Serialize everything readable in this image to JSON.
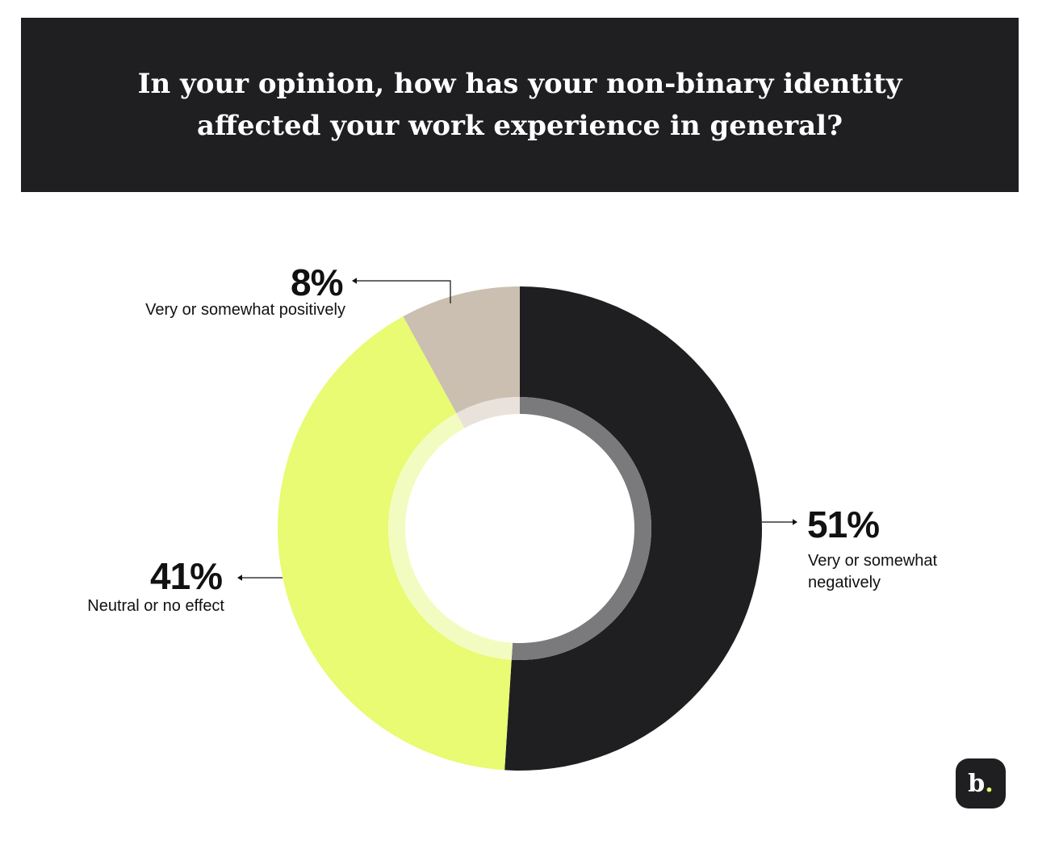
{
  "title": "In your opinion, how has your non-binary identity affected your work experience in general?",
  "chart_data": {
    "type": "pie",
    "variant": "donut",
    "slices": [
      {
        "label": "Very or somewhat negatively",
        "value": 51,
        "value_label": "51%",
        "color": "#1f1f22",
        "inner_color": "#7a7a7c"
      },
      {
        "label": "Neutral or no effect",
        "value": 41,
        "value_label": "41%",
        "color": "#e8fb72",
        "inner_color": "#f3fcc0"
      },
      {
        "label": "Very or somewhat positively",
        "value": 8,
        "value_label": "8%",
        "color": "#cbbfb1",
        "inner_color": "#e8e2db"
      }
    ]
  },
  "logo": {
    "letter": "b",
    "dot": "."
  }
}
